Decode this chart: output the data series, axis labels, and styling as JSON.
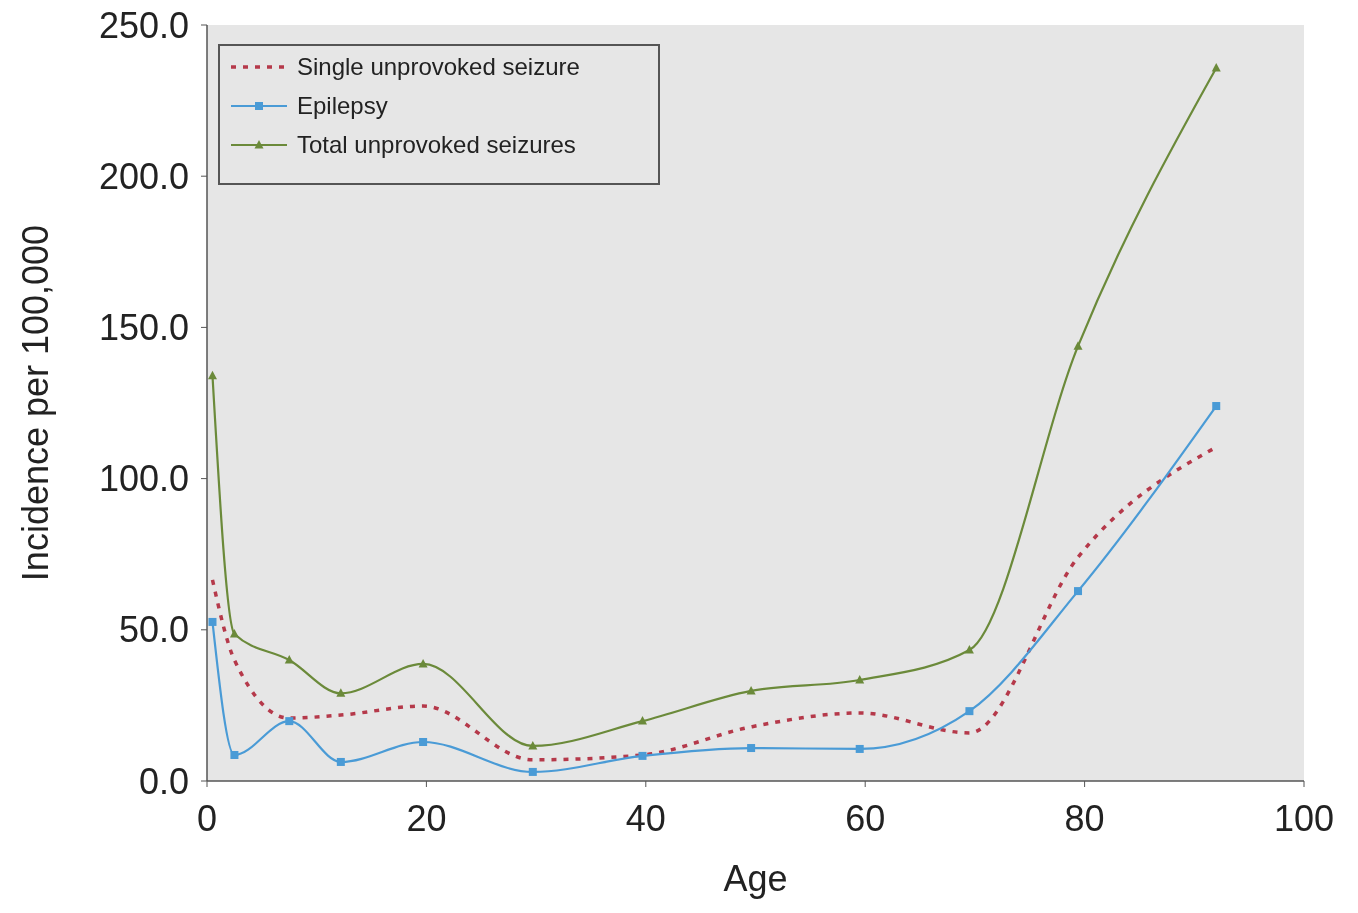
{
  "chart_data": {
    "type": "line",
    "xlabel": "Age",
    "ylabel": "Incidence per 100,000",
    "xlim": [
      0,
      100
    ],
    "xticks": [
      0,
      20,
      40,
      60,
      80,
      100
    ],
    "ylim": [
      0,
      250
    ],
    "yticks": [
      {
        "value": 0,
        "label": "0.0"
      },
      {
        "value": 50,
        "label": "50.0"
      },
      {
        "value": 100,
        "label": "100.0"
      },
      {
        "value": 150,
        "label": "150.0"
      },
      {
        "value": 200,
        "label": "200.0"
      },
      {
        "value": 250,
        "label": "250.0"
      }
    ],
    "x": [
      0.5,
      2.5,
      7.5,
      12.2,
      19.7,
      29.7,
      39.7,
      49.6,
      59.5,
      69.5,
      79.4,
      92
    ],
    "legend": "top left",
    "grid": false,
    "series": [
      {
        "name": "Single unprovoked seizure",
        "color": "#b5394a",
        "line_style": "dotted",
        "marker": "none",
        "values": [
          66.5,
          40,
          20.8,
          21.8,
          24.8,
          7,
          8.6,
          17.9,
          22.5,
          15.9,
          74,
          110.4
        ]
      },
      {
        "name": "Epilepsy",
        "color": "#4a9bd6",
        "line_style": "solid",
        "marker": "square",
        "values": [
          52.6,
          8.6,
          19.8,
          6.3,
          12.9,
          3,
          8.3,
          10.9,
          10.6,
          23.1,
          62.8,
          124
        ]
      },
      {
        "name": "Total unprovoked seizures",
        "color": "#6b8a3a",
        "line_style": "solid",
        "marker": "triangle",
        "values": [
          134,
          48.6,
          40,
          29,
          38.7,
          11.6,
          19.8,
          29.8,
          33.4,
          43.3,
          143.8,
          235.8
        ]
      }
    ]
  }
}
